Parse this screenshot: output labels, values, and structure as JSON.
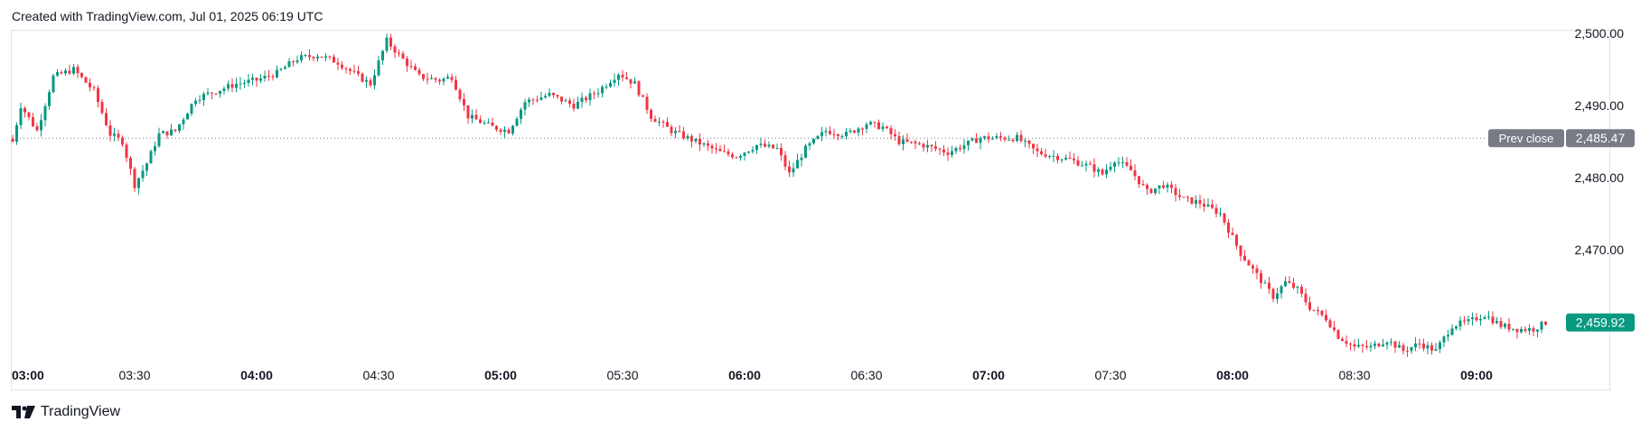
{
  "header": {
    "text": "Created with TradingView.com, Jul 01, 2025 06:19 UTC"
  },
  "footer": {
    "brand": "TradingView",
    "logo_icon": "tradingview-logo-icon"
  },
  "colors": {
    "up": "#089981",
    "down": "#f23645",
    "prev_close_badge": "#787b86",
    "last_price_badge": "#089981"
  },
  "chart_data": {
    "type": "candlestick",
    "title": "",
    "xlabel": "",
    "ylabel": "",
    "ylim": [
      2455.0,
      2501.5
    ],
    "y_ticks": [
      2500.0,
      2490.0,
      2480.0,
      2470.0
    ],
    "y_tick_labels": [
      "2,500.00",
      "2,490.00",
      "2,480.00",
      "2,470.00"
    ],
    "x_ticks": [
      {
        "t": 0,
        "label": "03:00",
        "bold": true
      },
      {
        "t": 30,
        "label": "03:30",
        "bold": false
      },
      {
        "t": 60,
        "label": "04:00",
        "bold": true
      },
      {
        "t": 90,
        "label": "04:30",
        "bold": false
      },
      {
        "t": 120,
        "label": "05:00",
        "bold": true
      },
      {
        "t": 150,
        "label": "05:30",
        "bold": false
      },
      {
        "t": 180,
        "label": "06:00",
        "bold": true
      },
      {
        "t": 210,
        "label": "06:30",
        "bold": false
      },
      {
        "t": 240,
        "label": "07:00",
        "bold": true
      },
      {
        "t": 270,
        "label": "07:30",
        "bold": false
      },
      {
        "t": 300,
        "label": "08:00",
        "bold": true
      },
      {
        "t": 330,
        "label": "08:30",
        "bold": false
      },
      {
        "t": 360,
        "label": "09:00",
        "bold": true
      }
    ],
    "prev_close": {
      "label": "Prev close",
      "value_label": "2,485.47",
      "value": 2485.47
    },
    "last_price": {
      "value_label": "2,459.92",
      "value": 2459.92
    },
    "grid": false,
    "close_anchors": [
      [
        0,
        2485.0
      ],
      [
        2,
        2490.0
      ],
      [
        6,
        2486.5
      ],
      [
        10,
        2494.0
      ],
      [
        15,
        2495.0
      ],
      [
        20,
        2492.0
      ],
      [
        24,
        2486.0
      ],
      [
        27,
        2485.0
      ],
      [
        30,
        2479.0
      ],
      [
        33,
        2482.0
      ],
      [
        36,
        2486.0
      ],
      [
        40,
        2486.5
      ],
      [
        45,
        2491.0
      ],
      [
        50,
        2492.0
      ],
      [
        55,
        2493.0
      ],
      [
        60,
        2493.5
      ],
      [
        65,
        2494.5
      ],
      [
        70,
        2496.5
      ],
      [
        75,
        2497.0
      ],
      [
        80,
        2496.0
      ],
      [
        85,
        2494.0
      ],
      [
        88,
        2493.0
      ],
      [
        92,
        2499.0
      ],
      [
        95,
        2497.0
      ],
      [
        100,
        2494.0
      ],
      [
        105,
        2493.5
      ],
      [
        108,
        2494.0
      ],
      [
        112,
        2488.5
      ],
      [
        118,
        2487.0
      ],
      [
        122,
        2486.5
      ],
      [
        126,
        2490.5
      ],
      [
        132,
        2491.5
      ],
      [
        138,
        2490.0
      ],
      [
        144,
        2492.0
      ],
      [
        149,
        2494.5
      ],
      [
        153,
        2493.0
      ],
      [
        157,
        2488.5
      ],
      [
        162,
        2486.5
      ],
      [
        168,
        2485.0
      ],
      [
        174,
        2483.5
      ],
      [
        178,
        2483.0
      ],
      [
        183,
        2484.5
      ],
      [
        188,
        2484.0
      ],
      [
        191,
        2480.5
      ],
      [
        195,
        2484.0
      ],
      [
        200,
        2486.5
      ],
      [
        205,
        2486.0
      ],
      [
        210,
        2487.5
      ],
      [
        214,
        2487.0
      ],
      [
        218,
        2485.0
      ],
      [
        224,
        2484.5
      ],
      [
        230,
        2483.5
      ],
      [
        234,
        2484.5
      ],
      [
        238,
        2485.5
      ],
      [
        242,
        2485.5
      ],
      [
        247,
        2485.5
      ],
      [
        252,
        2483.5
      ],
      [
        260,
        2482.5
      ],
      [
        265,
        2481.5
      ],
      [
        268,
        2480.5
      ],
      [
        271,
        2482.5
      ],
      [
        275,
        2481.0
      ],
      [
        279,
        2478.0
      ],
      [
        283,
        2479.0
      ],
      [
        288,
        2477.0
      ],
      [
        292,
        2476.5
      ],
      [
        297,
        2475.0
      ],
      [
        302,
        2469.5
      ],
      [
        306,
        2466.5
      ],
      [
        310,
        2463.5
      ],
      [
        313,
        2465.5
      ],
      [
        316,
        2464.5
      ],
      [
        319,
        2462.0
      ],
      [
        323,
        2460.5
      ],
      [
        326,
        2458.0
      ],
      [
        330,
        2456.5
      ],
      [
        334,
        2456.5
      ],
      [
        338,
        2457.5
      ],
      [
        342,
        2456.0
      ],
      [
        346,
        2457.0
      ],
      [
        350,
        2456.0
      ],
      [
        354,
        2459.5
      ],
      [
        358,
        2460.0
      ],
      [
        362,
        2461.0
      ],
      [
        366,
        2459.5
      ],
      [
        370,
        2459.0
      ],
      [
        374,
        2459.0
      ],
      [
        377,
        2459.92
      ]
    ]
  }
}
